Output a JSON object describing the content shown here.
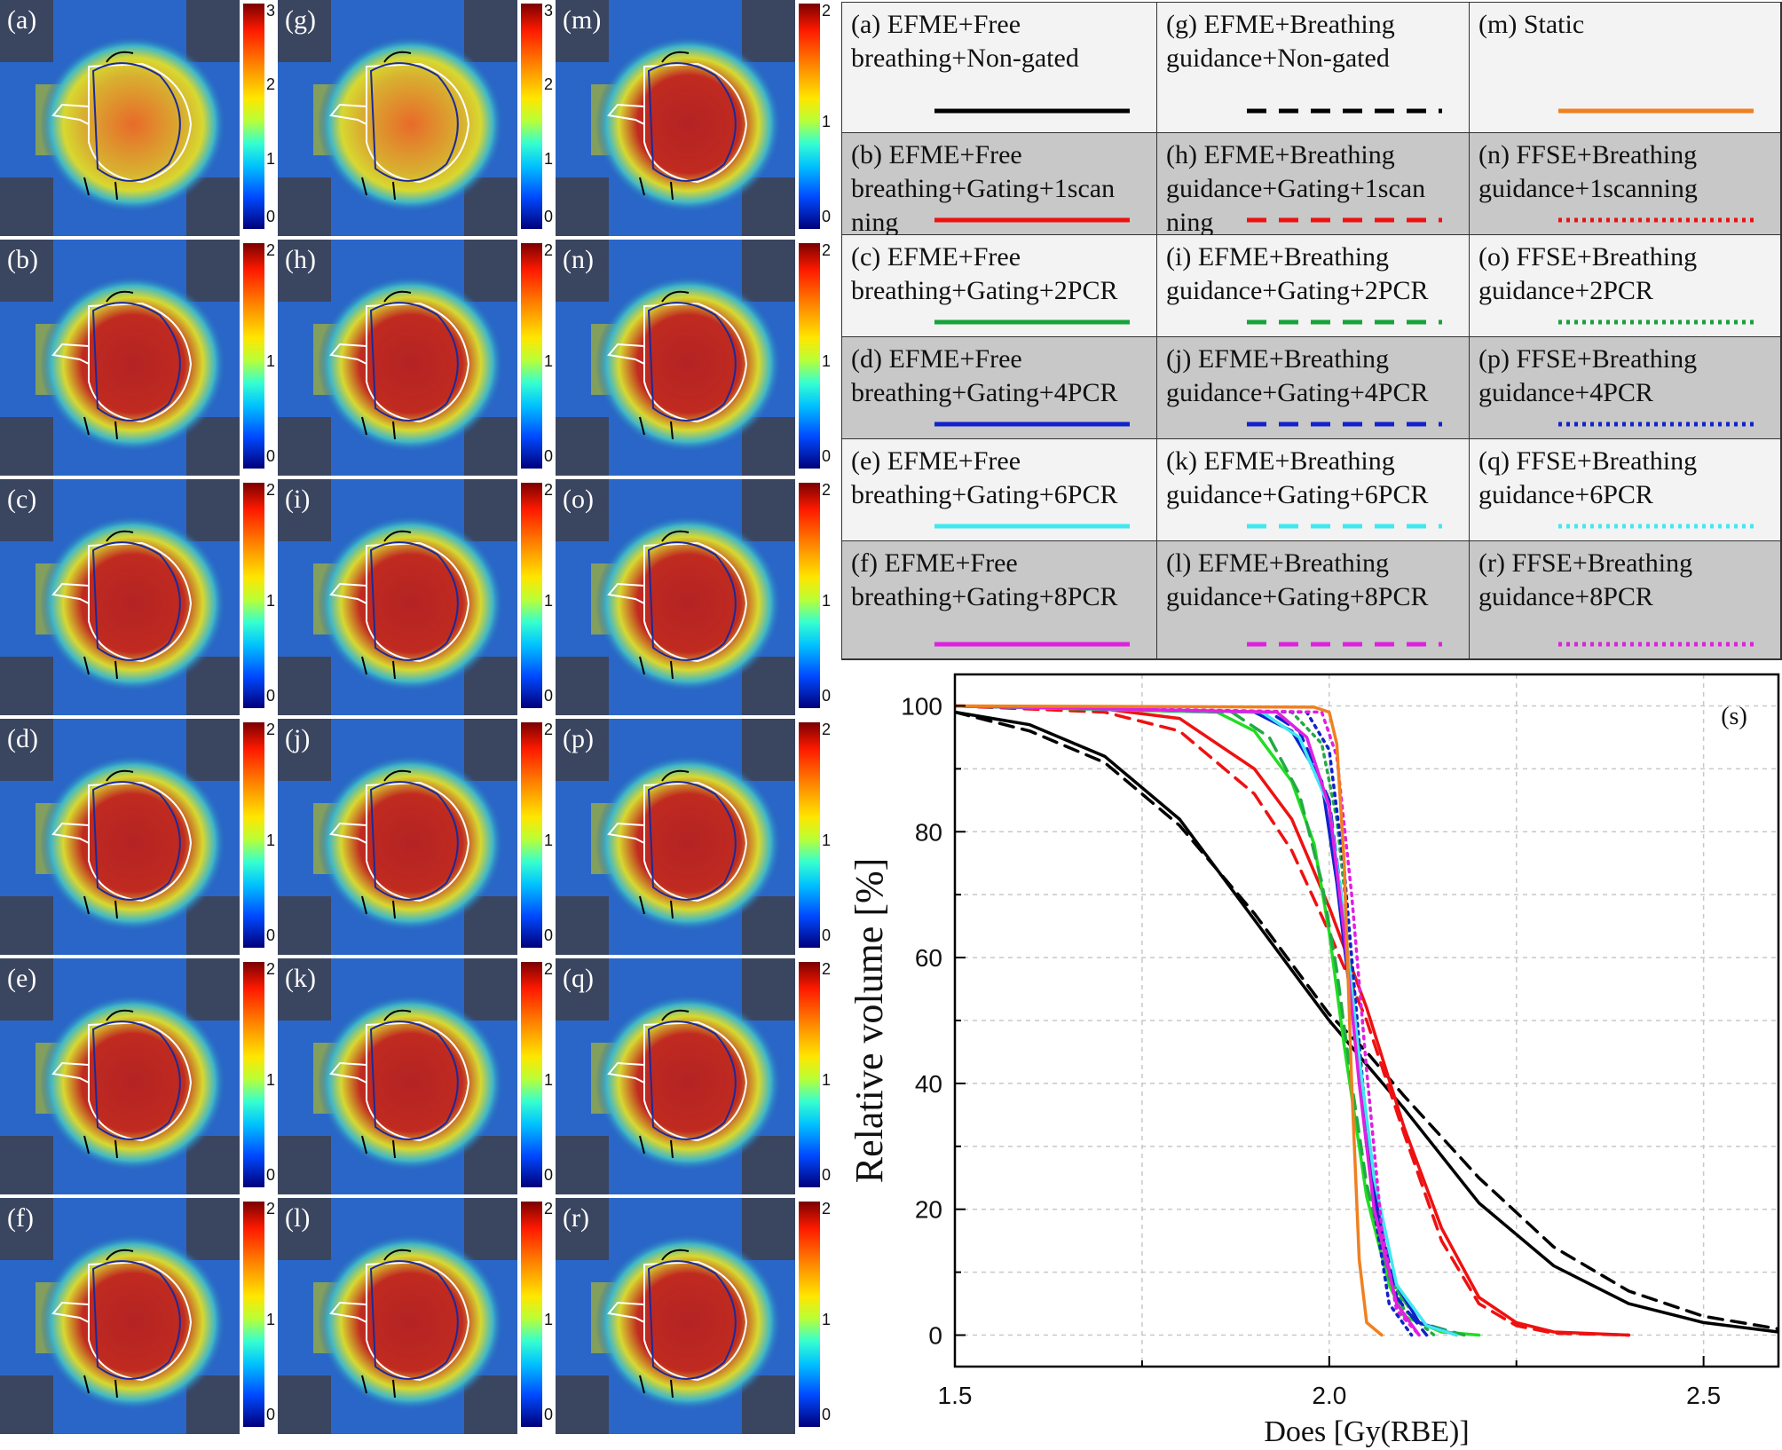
{
  "panels": [
    {
      "label": "(a)",
      "scale_max": "3"
    },
    {
      "label": "(g)",
      "scale_max": "3"
    },
    {
      "label": "(m)",
      "scale_max": "2"
    },
    {
      "label": "(b)",
      "scale_max": "2"
    },
    {
      "label": "(h)",
      "scale_max": "2"
    },
    {
      "label": "(n)",
      "scale_max": "2"
    },
    {
      "label": "(c)",
      "scale_max": "2"
    },
    {
      "label": "(i)",
      "scale_max": "2"
    },
    {
      "label": "(o)",
      "scale_max": "2"
    },
    {
      "label": "(d)",
      "scale_max": "2"
    },
    {
      "label": "(j)",
      "scale_max": "2"
    },
    {
      "label": "(p)",
      "scale_max": "2"
    },
    {
      "label": "(e)",
      "scale_max": "2"
    },
    {
      "label": "(k)",
      "scale_max": "2"
    },
    {
      "label": "(q)",
      "scale_max": "2"
    },
    {
      "label": "(f)",
      "scale_max": "2"
    },
    {
      "label": "(l)",
      "scale_max": "2"
    },
    {
      "label": "(r)",
      "scale_max": "2"
    }
  ],
  "colorbar_ticks": {
    "three": [
      "3",
      "2",
      "1",
      "0"
    ],
    "two": [
      "2",
      "1",
      "0"
    ]
  },
  "legend": [
    {
      "text": "(a) EFME+Free breathing+Non-gated",
      "color": "#000000",
      "dash": "solid"
    },
    {
      "text": "(g) EFME+Breathing guidance+Non-gated",
      "color": "#000000",
      "dash": "dashed"
    },
    {
      "text": "(m) Static",
      "color": "#f08020",
      "dash": "solid"
    },
    {
      "text": "(b) EFME+Free breathing+Gating+1scan ning",
      "color": "#ee1111",
      "dash": "solid"
    },
    {
      "text": "(h) EFME+Breathing guidance+Gating+1scan ning",
      "color": "#ee1111",
      "dash": "dashed"
    },
    {
      "text": "(n) FFSE+Breathing guidance+1scanning",
      "color": "#ee1111",
      "dash": "dotted"
    },
    {
      "text": "(c) EFME+Free breathing+Gating+2PCR",
      "color": "#16a33a",
      "dash": "solid"
    },
    {
      "text": "(i) EFME+Breathing guidance+Gating+2PCR",
      "color": "#16a33a",
      "dash": "dashed"
    },
    {
      "text": "(o) FFSE+Breathing guidance+2PCR",
      "color": "#16a33a",
      "dash": "dotted"
    },
    {
      "text": "(d) EFME+Free breathing+Gating+4PCR",
      "color": "#1122cc",
      "dash": "solid"
    },
    {
      "text": "(j) EFME+Breathing guidance+Gating+4PCR",
      "color": "#1122cc",
      "dash": "dashed"
    },
    {
      "text": "(p) FFSE+Breathing guidance+4PCR",
      "color": "#1122cc",
      "dash": "dotted"
    },
    {
      "text": "(e) EFME+Free breathing+Gating+6PCR",
      "color": "#40e8f0",
      "dash": "solid"
    },
    {
      "text": "(k) EFME+Breathing guidance+Gating+6PCR",
      "color": "#40e8f0",
      "dash": "dashed"
    },
    {
      "text": "(q) FFSE+Breathing guidance+6PCR",
      "color": "#40e8f0",
      "dash": "dotted"
    },
    {
      "text": "(f) EFME+Free breathing+Gating+8PCR",
      "color": "#e020e0",
      "dash": "solid"
    },
    {
      "text": "(l) EFME+Breathing guidance+Gating+8PCR",
      "color": "#e020e0",
      "dash": "dashed"
    },
    {
      "text": "(r) FFSE+Breathing guidance+8PCR",
      "color": "#e020e0",
      "dash": "dotted"
    }
  ],
  "chart_data": {
    "type": "line",
    "panel_label": "(s)",
    "xlabel": "Does [Gy(RBE)]",
    "ylabel": "Relative volume [%]",
    "xlim": [
      1.5,
      2.6
    ],
    "ylim": [
      -5,
      105
    ],
    "xticks": [
      "1.5",
      "2.0",
      "2.5"
    ],
    "yticks": [
      "0",
      "20",
      "40",
      "60",
      "80",
      "100"
    ],
    "grid": true,
    "series": [
      {
        "name": "(a) EFME+Free breathing+Non-gated",
        "color": "#000000",
        "dash": "solid",
        "x": [
          1.5,
          1.6,
          1.7,
          1.8,
          1.9,
          1.95,
          2.0,
          2.05,
          2.1,
          2.2,
          2.3,
          2.4,
          2.5,
          2.6
        ],
        "y": [
          99,
          97,
          92,
          82,
          66,
          58,
          50,
          43,
          36,
          21,
          11,
          5,
          2,
          0.5
        ]
      },
      {
        "name": "(g) EFME+Breathing guidance+Non-gated",
        "color": "#000000",
        "dash": "dashed",
        "x": [
          1.5,
          1.6,
          1.7,
          1.8,
          1.9,
          1.95,
          2.0,
          2.05,
          2.1,
          2.2,
          2.3,
          2.4,
          2.5,
          2.6
        ],
        "y": [
          99,
          96,
          91,
          81,
          67,
          59,
          51,
          45,
          38,
          25,
          14,
          7,
          3,
          1
        ]
      },
      {
        "name": "(b) EFME+Free breathing+Gating+1scanning",
        "color": "#ee1111",
        "dash": "solid",
        "x": [
          1.5,
          1.7,
          1.8,
          1.9,
          1.95,
          2.0,
          2.05,
          2.1,
          2.15,
          2.2,
          2.25,
          2.3,
          2.4
        ],
        "y": [
          100,
          99.5,
          98,
          90,
          82,
          68,
          52,
          33,
          17,
          6,
          2,
          0.5,
          0
        ]
      },
      {
        "name": "(h) EFME+Breathing guidance+Gating+1scanning",
        "color": "#ee1111",
        "dash": "dashed",
        "x": [
          1.5,
          1.7,
          1.8,
          1.9,
          1.95,
          2.0,
          2.05,
          2.1,
          2.15,
          2.2,
          2.25,
          2.3,
          2.4
        ],
        "y": [
          100,
          99,
          96,
          86,
          77,
          64,
          50,
          32,
          15,
          5,
          1.5,
          0.3,
          0
        ]
      },
      {
        "name": "(c) EFME+Free breathing+Gating+2PCR",
        "color": "#22dd22",
        "dash": "solid",
        "x": [
          1.5,
          1.85,
          1.9,
          1.95,
          1.98,
          2.0,
          2.02,
          2.05,
          2.08,
          2.1,
          2.15,
          2.2
        ],
        "y": [
          100,
          99,
          96,
          88,
          78,
          64,
          46,
          22,
          8,
          3,
          0.5,
          0
        ]
      },
      {
        "name": "(i) EFME+Breathing guidance+Gating+2PCR",
        "color": "#22aa44",
        "dash": "dashed",
        "x": [
          1.5,
          1.87,
          1.92,
          1.96,
          1.99,
          2.01,
          2.03,
          2.05,
          2.08,
          2.12,
          2.18
        ],
        "y": [
          100,
          99,
          95,
          86,
          72,
          58,
          40,
          24,
          9,
          2,
          0
        ]
      },
      {
        "name": "(o) FFSE+Breathing guidance+2PCR",
        "color": "#22aa44",
        "dash": "dotted",
        "x": [
          1.5,
          1.95,
          1.99,
          2.01,
          2.03,
          2.05,
          2.07,
          2.1,
          2.14
        ],
        "y": [
          100,
          99,
          94,
          82,
          60,
          33,
          14,
          4,
          0
        ]
      },
      {
        "name": "(d) EFME+Free breathing+Gating+4PCR",
        "color": "#1122cc",
        "dash": "solid",
        "x": [
          1.5,
          1.9,
          1.95,
          1.99,
          2.01,
          2.03,
          2.05,
          2.08,
          2.12,
          2.17
        ],
        "y": [
          100,
          99,
          96,
          88,
          72,
          52,
          30,
          10,
          2,
          0
        ]
      },
      {
        "name": "(j) EFME+Breathing guidance+Gating+4PCR",
        "color": "#1122cc",
        "dash": "dashed",
        "x": [
          1.5,
          1.92,
          1.96,
          2.0,
          2.02,
          2.04,
          2.06,
          2.09,
          2.13
        ],
        "y": [
          100,
          99,
          96,
          85,
          66,
          44,
          22,
          6,
          0
        ]
      },
      {
        "name": "(p) FFSE+Breathing guidance+4PCR",
        "color": "#1122cc",
        "dash": "dotted",
        "x": [
          1.5,
          1.97,
          2.0,
          2.02,
          2.04,
          2.06,
          2.08,
          2.11
        ],
        "y": [
          100,
          99,
          93,
          74,
          46,
          20,
          5,
          0
        ]
      },
      {
        "name": "(e) EFME+Free breathing+Gating+6PCR",
        "color": "#40e8f0",
        "dash": "solid",
        "x": [
          1.5,
          1.91,
          1.96,
          2.0,
          2.02,
          2.04,
          2.06,
          2.09,
          2.13,
          2.17
        ],
        "y": [
          100,
          99,
          95,
          84,
          66,
          44,
          25,
          8,
          1.5,
          0
        ]
      },
      {
        "name": "(f) EFME+Free breathing+Gating+8PCR",
        "color": "#e020e0",
        "dash": "solid",
        "x": [
          1.5,
          1.93,
          1.97,
          2.0,
          2.02,
          2.04,
          2.06,
          2.09,
          2.12
        ],
        "y": [
          100,
          99,
          95,
          84,
          64,
          40,
          20,
          5,
          0
        ]
      },
      {
        "name": "(r) FFSE+Breathing guidance+8PCR",
        "color": "#e020e0",
        "dash": "dotted",
        "x": [
          1.5,
          1.99,
          2.01,
          2.03,
          2.05,
          2.07,
          2.09,
          2.12
        ],
        "y": [
          100,
          99,
          92,
          70,
          42,
          17,
          4,
          0
        ]
      },
      {
        "name": "(m) Static",
        "color": "#f08020",
        "dash": "solid",
        "x": [
          1.5,
          1.98,
          2.0,
          2.01,
          2.02,
          2.03,
          2.04,
          2.05,
          2.07
        ],
        "y": [
          100,
          99.8,
          99,
          94,
          75,
          40,
          12,
          2,
          0
        ]
      }
    ]
  }
}
